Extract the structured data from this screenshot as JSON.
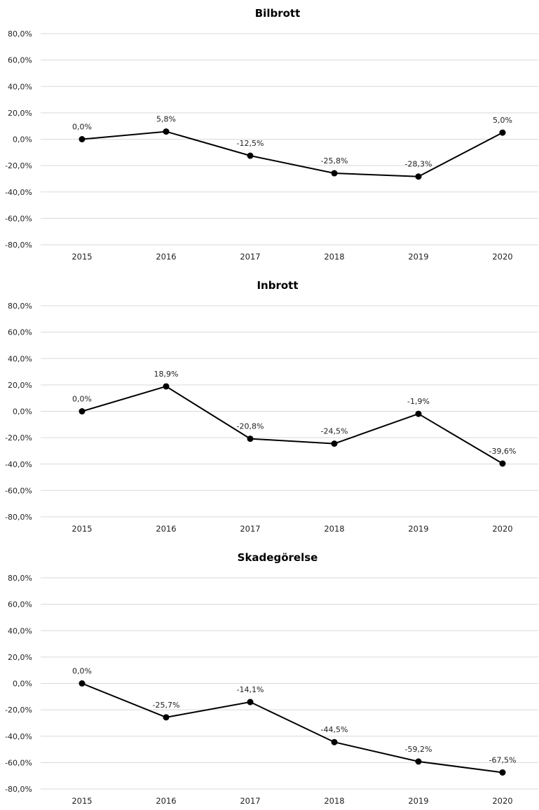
{
  "chart_data": [
    {
      "type": "line",
      "title": "Bilbrott",
      "categories": [
        "2015",
        "2016",
        "2017",
        "2018",
        "2019",
        "2020"
      ],
      "values": [
        0.0,
        5.8,
        -12.5,
        -25.8,
        -28.3,
        5.0
      ],
      "data_labels": [
        "0,0%",
        "5,8%",
        "-12,5%",
        "-25,8%",
        "-28,3%",
        "5,0%"
      ],
      "ylim": [
        -80,
        80
      ],
      "yticks": [
        80,
        60,
        40,
        20,
        0,
        -20,
        -40,
        -60,
        -80
      ],
      "ytick_labels": [
        "80,0%",
        "60,0%",
        "40,0%",
        "20,0%",
        "0,0%",
        "-20,0%",
        "-40,0%",
        "-60,0%",
        "-80,0%"
      ],
      "grid": true,
      "legend": "none",
      "line_color": "#000000"
    },
    {
      "type": "line",
      "title": "Inbrott",
      "categories": [
        "2015",
        "2016",
        "2017",
        "2018",
        "2019",
        "2020"
      ],
      "values": [
        0.0,
        18.9,
        -20.8,
        -24.5,
        -1.9,
        -39.6
      ],
      "data_labels": [
        "0,0%",
        "18,9%",
        "-20,8%",
        "-24,5%",
        "-1,9%",
        "-39,6%"
      ],
      "ylim": [
        -80,
        80
      ],
      "yticks": [
        80,
        60,
        40,
        20,
        0,
        -20,
        -40,
        -60,
        -80
      ],
      "ytick_labels": [
        "80,0%",
        "60,0%",
        "40,0%",
        "20,0%",
        "0,0%",
        "-20,0%",
        "-40,0%",
        "-60,0%",
        "-80,0%"
      ],
      "grid": true,
      "legend": "none",
      "line_color": "#000000"
    },
    {
      "type": "line",
      "title": "Skadegörelse",
      "categories": [
        "2015",
        "2016",
        "2017",
        "2018",
        "2019",
        "2020"
      ],
      "values": [
        0.0,
        -25.7,
        -14.1,
        -44.5,
        -59.2,
        -67.5
      ],
      "data_labels": [
        "0,0%",
        "-25,7%",
        "-14,1%",
        "-44,5%",
        "-59,2%",
        "-67,5%"
      ],
      "ylim": [
        -80,
        80
      ],
      "yticks": [
        80,
        60,
        40,
        20,
        0,
        -20,
        -40,
        -60,
        -80
      ],
      "ytick_labels": [
        "80,0%",
        "60,0%",
        "40,0%",
        "20,0%",
        "0,0%",
        "-20,0%",
        "-40,0%",
        "-60,0%",
        "-80,0%"
      ],
      "grid": true,
      "legend": "none",
      "line_color": "#000000"
    }
  ]
}
